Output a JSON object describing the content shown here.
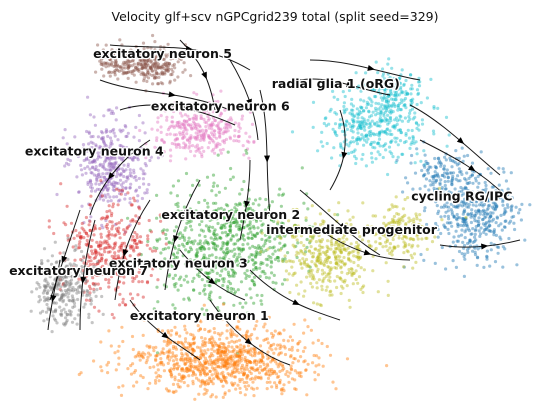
{
  "chart_data": {
    "type": "scatter",
    "title": "Velocity glf+scv nGPCgrid239 total (split seed=329)",
    "xlabel": "",
    "ylabel": "",
    "axes_visible": false,
    "overlay": "velocity streamlines (black arrows)",
    "legend": "on data",
    "clusters": [
      {
        "name": "excitatory neuron 5",
        "color": "#8c564b",
        "label_xy": [
          0.3,
          0.93
        ]
      },
      {
        "name": "excitatory neuron 6",
        "color": "#e377c2",
        "label_xy": [
          0.41,
          0.79
        ]
      },
      {
        "name": "radial glia 1 (oRG)",
        "color": "#17becf",
        "label_xy": [
          0.63,
          0.85
        ]
      },
      {
        "name": "excitatory neuron 4",
        "color": "#9467bd",
        "label_xy": [
          0.17,
          0.67
        ]
      },
      {
        "name": "cycling RG/IPC",
        "color": "#1f77b4",
        "label_xy": [
          0.87,
          0.55
        ]
      },
      {
        "name": "excitatory neuron 2",
        "color": "#2ca02c",
        "label_xy": [
          0.43,
          0.5
        ]
      },
      {
        "name": "intermediate progenitor",
        "color": "#bcbd22",
        "label_xy": [
          0.66,
          0.46
        ]
      },
      {
        "name": "excitatory neuron 3",
        "color": "#d62728",
        "label_xy": [
          0.33,
          0.37
        ]
      },
      {
        "name": "excitatory neuron 7",
        "color": "#7f7f7f",
        "label_xy": [
          0.14,
          0.35
        ]
      },
      {
        "name": "excitatory neuron 1",
        "color": "#ff7f0e",
        "label_xy": [
          0.37,
          0.23
        ]
      }
    ]
  }
}
